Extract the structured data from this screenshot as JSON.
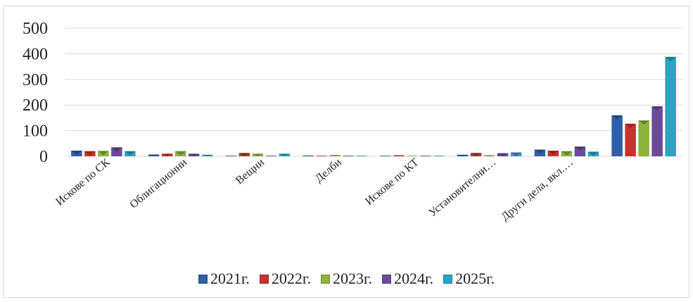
{
  "chart_data": {
    "type": "bar",
    "categories": [
      "Искове по СК",
      "Облигационни",
      "Вещни",
      "Делби",
      "Искове по КТ",
      "Установителни…",
      "Други дела, вкл.…",
      ""
    ],
    "series": [
      {
        "name": "2021г.",
        "color": "#2E5FA8",
        "values": [
          22,
          7,
          2,
          3,
          1,
          6,
          26,
          160
        ]
      },
      {
        "name": "2022г.",
        "color": "#C8322E",
        "values": [
          20,
          10,
          13,
          1,
          4,
          13,
          22,
          127
        ]
      },
      {
        "name": "2023г.",
        "color": "#8DB33A",
        "values": [
          21,
          20,
          10,
          5,
          1,
          4,
          20,
          140
        ]
      },
      {
        "name": "2024г.",
        "color": "#6B4A9A",
        "values": [
          35,
          10,
          1,
          1,
          1,
          12,
          38,
          195
        ]
      },
      {
        "name": "2025г.",
        "color": "#2BA3C2",
        "values": [
          20,
          6,
          10,
          1,
          1,
          15,
          18,
          388
        ]
      }
    ],
    "yticks": [
      0,
      100,
      200,
      300,
      400,
      500
    ],
    "ylim": [
      0,
      500
    ],
    "grid": true,
    "legend": "bottom"
  }
}
